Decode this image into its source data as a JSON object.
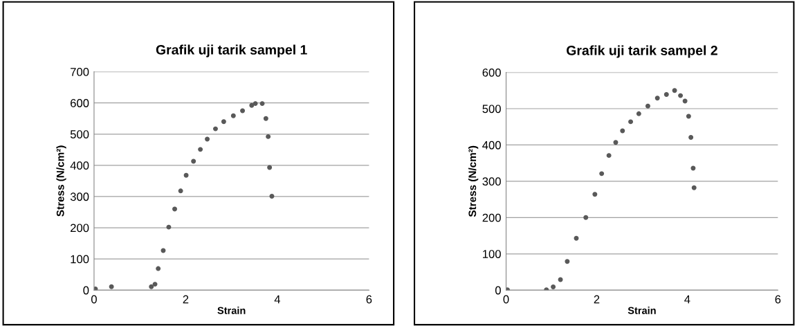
{
  "chart_data": [
    {
      "type": "scatter",
      "title": "Grafik uji tarik sampel 1",
      "xlabel": "Strain",
      "ylabel": "Stress (N/cm²)",
      "xlim": [
        0,
        6
      ],
      "xticks": [
        0,
        2,
        4,
        6
      ],
      "ylim": [
        0,
        700
      ],
      "yticks": [
        0,
        100,
        200,
        300,
        400,
        500,
        600,
        700
      ],
      "grid": "y",
      "marker": "circle",
      "legend": false,
      "series": [
        {
          "color": "#595959",
          "x": [
            0.03,
            0.38,
            1.25,
            1.33,
            1.4,
            1.51,
            1.63,
            1.76,
            1.89,
            2.01,
            2.17,
            2.32,
            2.47,
            2.65,
            2.83,
            3.04,
            3.24,
            3.44,
            3.52,
            3.67,
            3.75,
            3.8,
            3.83,
            3.88
          ],
          "values": [
            4,
            11,
            11,
            19,
            69,
            127,
            202,
            260,
            318,
            368,
            413,
            451,
            484,
            517,
            540,
            559,
            575,
            592,
            598,
            598,
            550,
            492,
            393,
            301
          ]
        }
      ]
    },
    {
      "type": "scatter",
      "title": "Grafik uji tarik sampel 2",
      "xlabel": "Strain",
      "ylabel": "Stress (N/cm²)",
      "xlim": [
        0,
        6
      ],
      "xticks": [
        0,
        2,
        4,
        6
      ],
      "ylim": [
        0,
        600
      ],
      "yticks": [
        0,
        100,
        200,
        300,
        400,
        500,
        600
      ],
      "grid": "y",
      "marker": "circle",
      "legend": false,
      "series": [
        {
          "color": "#595959",
          "x": [
            0.03,
            0.89,
            1.04,
            1.2,
            1.35,
            1.55,
            1.76,
            1.96,
            2.11,
            2.27,
            2.42,
            2.57,
            2.75,
            2.93,
            3.13,
            3.34,
            3.54,
            3.72,
            3.85,
            3.95,
            4.03,
            4.08,
            4.13,
            4.15
          ],
          "values": [
            1,
            1,
            9,
            29,
            79,
            143,
            200,
            264,
            321,
            371,
            407,
            439,
            464,
            486,
            507,
            529,
            539,
            550,
            536,
            521,
            479,
            421,
            336,
            282
          ]
        }
      ]
    }
  ]
}
